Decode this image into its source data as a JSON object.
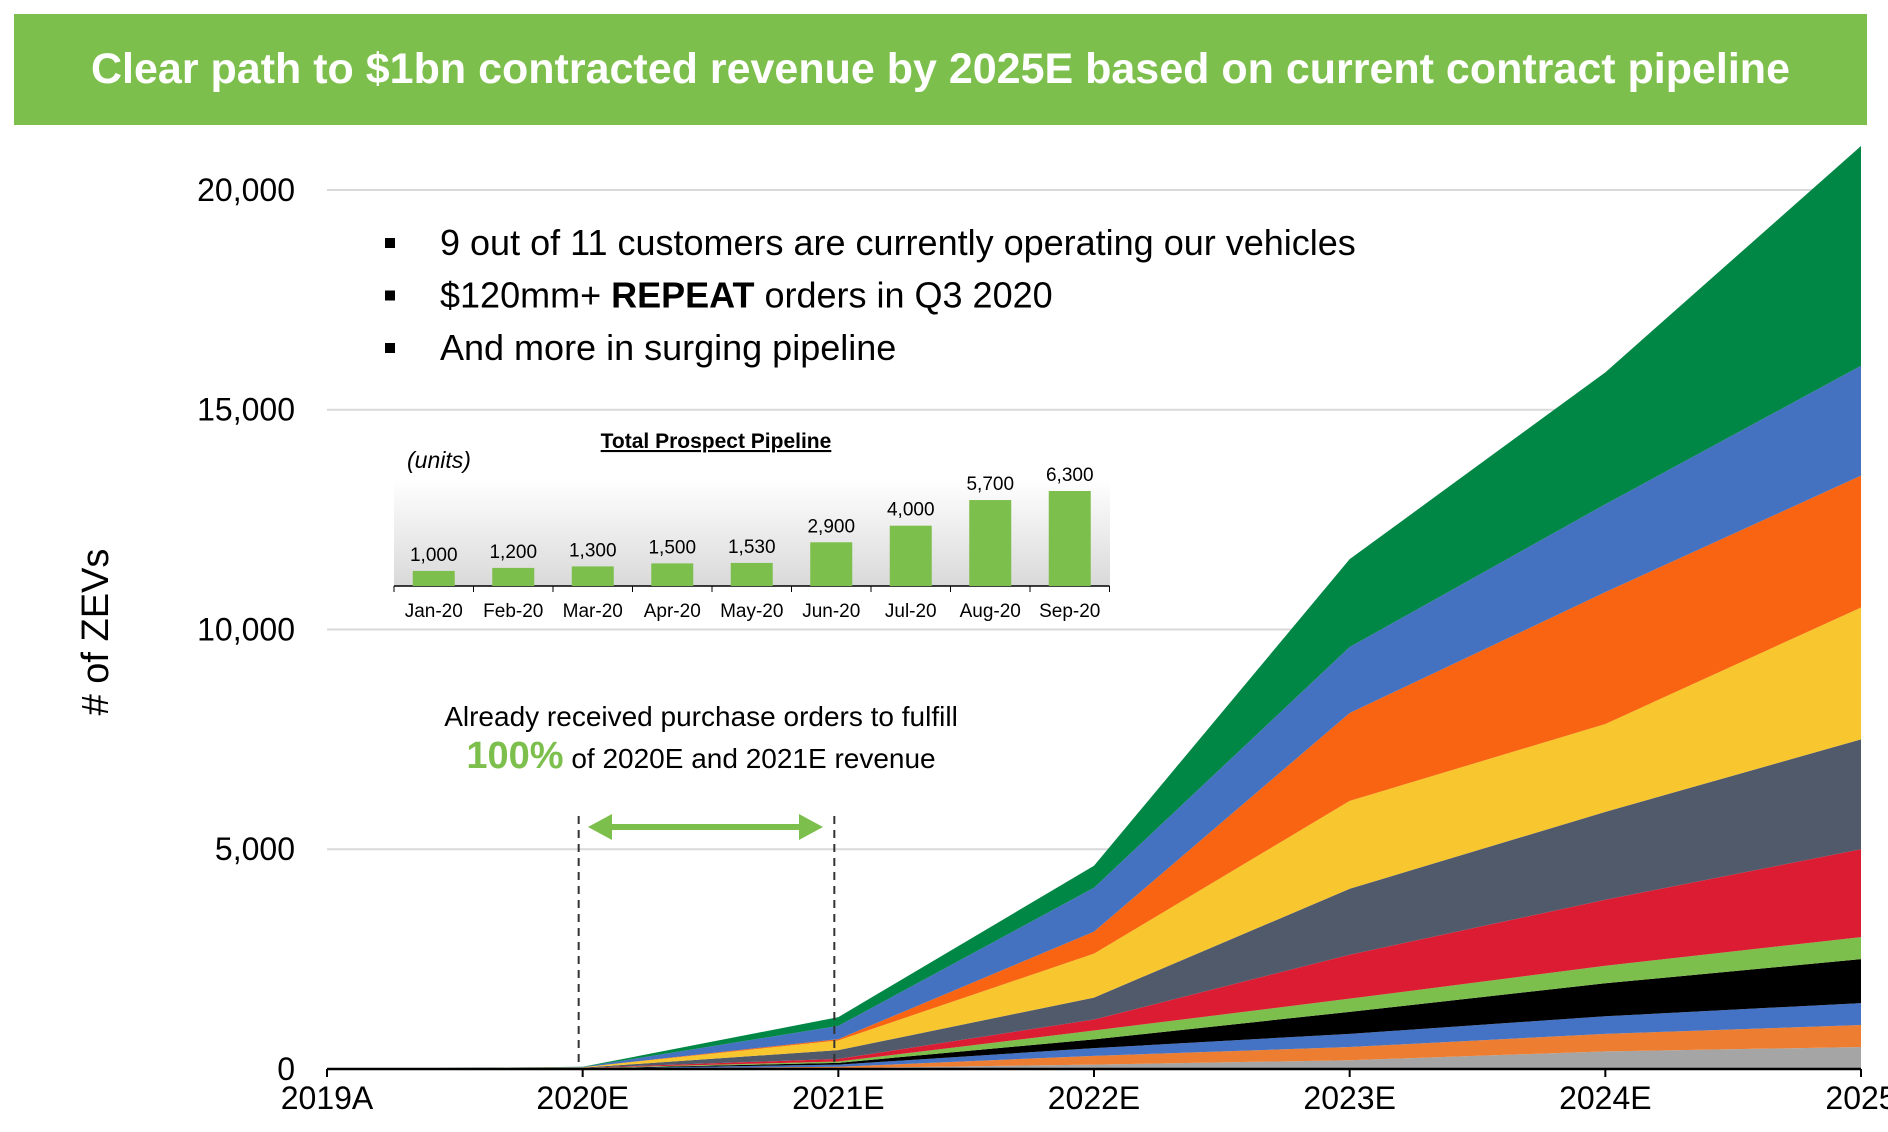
{
  "header": {
    "title": "Clear path to $1bn contracted revenue by 2025E based on current contract pipeline"
  },
  "bullets": [
    {
      "parts": [
        {
          "text": "9 out of 11 customers are currently operating our vehicles",
          "bold": false
        }
      ]
    },
    {
      "parts": [
        {
          "text": "$120mm+ ",
          "bold": false
        },
        {
          "text": "REPEAT",
          "bold": true
        },
        {
          "text": " orders in Q3 2020",
          "bold": false
        }
      ]
    },
    {
      "parts": [
        {
          "text": "And more in surging pipeline",
          "bold": false
        }
      ]
    }
  ],
  "annotation": {
    "line1": "Already received purchase orders to fulfill",
    "highlight": "100%",
    "line2": " of 2020E and 2021E revenue",
    "highlight_color": "#7dbf4c"
  },
  "chart_data": [
    {
      "type": "area",
      "stacked": true,
      "title": "",
      "xlabel": "",
      "ylabel": "# of ZEVs",
      "categories": [
        "2019A",
        "2020E",
        "2021E",
        "2022E",
        "2023E",
        "2024E",
        "2025"
      ],
      "ylim": [
        0,
        21000
      ],
      "yticks": [
        0,
        5000,
        10000,
        15000,
        20000
      ],
      "ytick_labels": [
        "0",
        "5,000",
        "10,000",
        "15,000",
        "20,000"
      ],
      "grid": true,
      "legend": "none",
      "series": [
        {
          "color": "#a5a5a5",
          "values": [
            0,
            0,
            20,
            100,
            200,
            400,
            500
          ]
        },
        {
          "color": "#ed7d31",
          "values": [
            0,
            5,
            30,
            200,
            300,
            400,
            500
          ]
        },
        {
          "color": "#4472c4",
          "values": [
            0,
            5,
            50,
            175,
            300,
            400,
            500
          ]
        },
        {
          "color": "#000000",
          "values": [
            0,
            5,
            40,
            200,
            500,
            750,
            1000
          ]
        },
        {
          "color": "#7dbf4c",
          "values": [
            0,
            5,
            30,
            200,
            300,
            400,
            500
          ]
        },
        {
          "color": "#dc1c32",
          "values": [
            0,
            5,
            60,
            250,
            1000,
            1500,
            2000
          ]
        },
        {
          "color": "#515a6b",
          "values": [
            0,
            5,
            200,
            500,
            1500,
            2000,
            2500
          ]
        },
        {
          "color": "#f8c62e",
          "values": [
            0,
            10,
            220,
            1000,
            2000,
            2000,
            3000
          ]
        },
        {
          "color": "#f86412",
          "values": [
            0,
            0,
            30,
            500,
            2000,
            3000,
            3000
          ]
        },
        {
          "color": "#4472c0",
          "values": [
            0,
            5,
            300,
            1000,
            1500,
            2000,
            2500
          ]
        },
        {
          "color": "#008745",
          "values": [
            0,
            5,
            200,
            500,
            2000,
            3000,
            5000
          ]
        }
      ],
      "reference_lines": [
        "2020E",
        "2021E"
      ]
    },
    {
      "type": "bar",
      "title": "Total Prospect Pipeline",
      "ylabel": "(units)",
      "categories": [
        "Jan-20",
        "Feb-20",
        "Mar-20",
        "Apr-20",
        "May-20",
        "Jun-20",
        "Jul-20",
        "Aug-20",
        "Sep-20"
      ],
      "values": [
        1000,
        1200,
        1300,
        1500,
        1530,
        2900,
        4000,
        5700,
        6300
      ],
      "value_labels": [
        "1,000",
        "1,200",
        "1,300",
        "1,500",
        "1,530",
        "2,900",
        "4,000",
        "5,700",
        "6,300"
      ],
      "color": "#7dbf4c"
    }
  ]
}
